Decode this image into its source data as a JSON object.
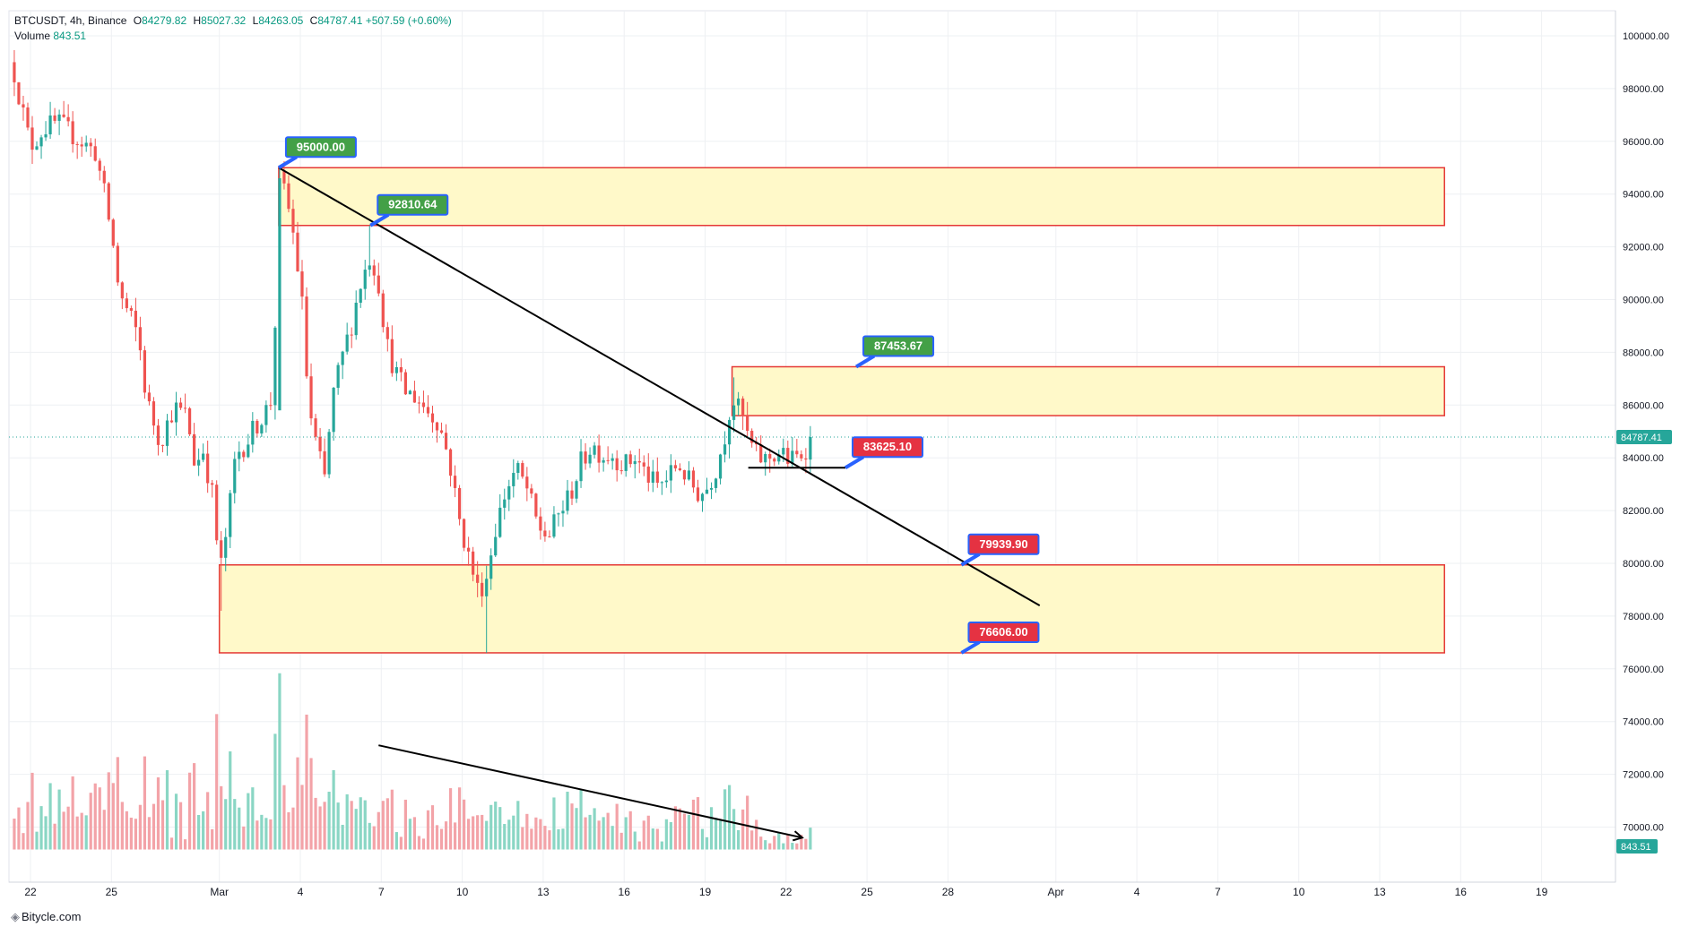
{
  "legend": {
    "symbol": "BTCUSDT, 4h, Binance",
    "o_label": "O",
    "o_value": "84279.82",
    "h_label": "H",
    "h_value": "85027.32",
    "l_label": "L",
    "l_value": "84263.05",
    "c_label": "C",
    "c_value": "84787.41",
    "change": "+507.59 (+0.60%)",
    "volume_label": "Volume",
    "volume_value": "843.51"
  },
  "footer": {
    "logo_text": "Bitycle.com"
  },
  "colors": {
    "up": "#26a69a",
    "down": "#ef5350",
    "vol_up": "#8ad6c4",
    "vol_down": "#f3a3a8",
    "zone_fill": "#fff9c9",
    "zone_border": "#e53935",
    "green_label": "#43a047",
    "red_label": "#e53242",
    "label_border": "#2962ff",
    "price_badge": "#26a69a",
    "grid": "#eef0f3"
  },
  "chart_data": {
    "type": "candlestick",
    "symbol": "BTCUSDT",
    "interval": "4h",
    "exchange": "Binance",
    "ylim": [
      66000,
      101000
    ],
    "y_ticks": [
      100000.0,
      98000.0,
      96000.0,
      94000.0,
      92000.0,
      90000.0,
      88000.0,
      86000.0,
      84000.0,
      82000.0,
      80000.0,
      78000.0,
      76000.0,
      74000.0,
      72000.0,
      70000.0
    ],
    "x_ticks": [
      {
        "label": "22",
        "day": 0
      },
      {
        "label": "25",
        "day": 3
      },
      {
        "label": "Mar",
        "day": 7
      },
      {
        "label": "4",
        "day": 10
      },
      {
        "label": "7",
        "day": 13
      },
      {
        "label": "10",
        "day": 16
      },
      {
        "label": "13",
        "day": 19
      },
      {
        "label": "16",
        "day": 22
      },
      {
        "label": "19",
        "day": 25
      },
      {
        "label": "22",
        "day": 28
      },
      {
        "label": "25",
        "day": 31
      },
      {
        "label": "28",
        "day": 34
      },
      {
        "label": "Apr",
        "day": 38
      },
      {
        "label": "4",
        "day": 41
      },
      {
        "label": "7",
        "day": 44
      },
      {
        "label": "10",
        "day": 47
      },
      {
        "label": "13",
        "day": 50
      },
      {
        "label": "16",
        "day": 53
      },
      {
        "label": "19",
        "day": 56
      }
    ],
    "last_price": "84787.41",
    "last_volume": "843.51",
    "close_path": [
      [
        -0.6,
        98600
      ],
      [
        0.0,
        95800
      ],
      [
        0.5,
        96500
      ],
      [
        1.0,
        96700
      ],
      [
        1.5,
        96300
      ],
      [
        2.0,
        95900
      ],
      [
        2.4,
        95600
      ],
      [
        2.7,
        94200
      ],
      [
        3.0,
        92500
      ],
      [
        3.3,
        90200
      ],
      [
        3.7,
        89300
      ],
      [
        4.0,
        88600
      ],
      [
        4.3,
        86200
      ],
      [
        4.8,
        84600
      ],
      [
        5.3,
        85900
      ],
      [
        5.8,
        85600
      ],
      [
        6.1,
        83700
      ],
      [
        6.4,
        84300
      ],
      [
        6.8,
        82300
      ],
      [
        7.0,
        79500
      ],
      [
        7.3,
        81400
      ],
      [
        7.6,
        84100
      ],
      [
        8.0,
        84600
      ],
      [
        8.4,
        85300
      ],
      [
        8.8,
        85900
      ],
      [
        9.0,
        86400
      ],
      [
        9.2,
        94600
      ],
      [
        9.5,
        93800
      ],
      [
        9.8,
        92100
      ],
      [
        10.1,
        89500
      ],
      [
        10.3,
        86000
      ],
      [
        10.6,
        84400
      ],
      [
        10.9,
        83200
      ],
      [
        11.2,
        86300
      ],
      [
        11.5,
        87600
      ],
      [
        11.9,
        89100
      ],
      [
        12.2,
        90500
      ],
      [
        12.6,
        91700
      ],
      [
        12.9,
        90600
      ],
      [
        13.2,
        88300
      ],
      [
        13.5,
        87300
      ],
      [
        13.9,
        86500
      ],
      [
        14.3,
        86300
      ],
      [
        14.7,
        85800
      ],
      [
        15.1,
        85400
      ],
      [
        15.5,
        84000
      ],
      [
        15.9,
        81600
      ],
      [
        16.2,
        80400
      ],
      [
        16.6,
        78900
      ],
      [
        16.9,
        79500
      ],
      [
        17.2,
        81200
      ],
      [
        17.6,
        82700
      ],
      [
        18.0,
        83600
      ],
      [
        18.4,
        82800
      ],
      [
        18.8,
        81400
      ],
      [
        19.2,
        81000
      ],
      [
        19.6,
        81900
      ],
      [
        20.0,
        82600
      ],
      [
        20.4,
        83800
      ],
      [
        20.8,
        84500
      ],
      [
        21.2,
        84100
      ],
      [
        21.6,
        84100
      ],
      [
        22.0,
        83700
      ],
      [
        22.4,
        84000
      ],
      [
        22.8,
        83400
      ],
      [
        23.2,
        82900
      ],
      [
        23.6,
        83200
      ],
      [
        24.0,
        83800
      ],
      [
        24.4,
        83100
      ],
      [
        24.8,
        82600
      ],
      [
        25.1,
        82900
      ],
      [
        25.4,
        83600
      ],
      [
        25.7,
        84700
      ],
      [
        26.0,
        86300
      ],
      [
        26.2,
        85900
      ],
      [
        26.4,
        85500
      ],
      [
        26.6,
        84700
      ],
      [
        26.9,
        84100
      ],
      [
        27.2,
        83900
      ],
      [
        27.5,
        84100
      ],
      [
        27.8,
        84200
      ],
      [
        28.1,
        83900
      ],
      [
        28.4,
        84000
      ],
      [
        28.7,
        84300
      ],
      [
        28.9,
        84787
      ]
    ],
    "zones": [
      {
        "from_day": 9.2,
        "to_day": 52.4,
        "top": 95000,
        "bottom": 92810
      },
      {
        "from_day": 26.0,
        "to_day": 52.4,
        "top": 87453,
        "bottom": 85600
      },
      {
        "from_day": 7.0,
        "to_day": 52.4,
        "top": 79940,
        "bottom": 76606
      }
    ],
    "trendline": {
      "from": [
        9.2,
        95000
      ],
      "to": [
        37.4,
        78400
      ]
    },
    "support_line": {
      "from": [
        26.6,
        83625
      ],
      "to": [
        30.2,
        83625
      ]
    },
    "volume_trend": {
      "from": [
        12.9,
        73100
      ],
      "to": [
        28.6,
        69600
      ]
    },
    "price_labels": [
      {
        "text": "95000.00",
        "kind": "green",
        "anchor": [
          9.2,
          95000
        ]
      },
      {
        "text": "92810.64",
        "kind": "green",
        "anchor": [
          12.6,
          92810
        ]
      },
      {
        "text": "87453.67",
        "kind": "green",
        "anchor": [
          30.6,
          87453
        ]
      },
      {
        "text": "83625.10",
        "kind": "red",
        "anchor": [
          30.2,
          83625
        ]
      },
      {
        "text": "79939.90",
        "kind": "red",
        "anchor": [
          34.5,
          79940
        ]
      },
      {
        "text": "76606.00",
        "kind": "red",
        "anchor": [
          34.5,
          76606
        ]
      }
    ]
  }
}
